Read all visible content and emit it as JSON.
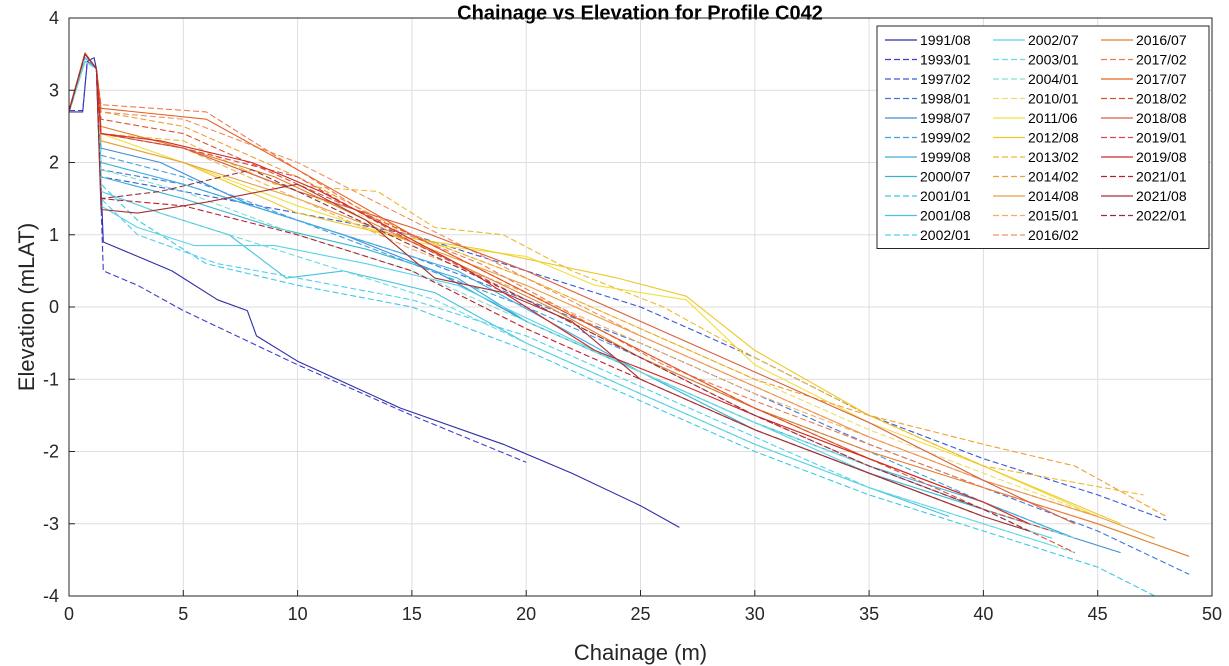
{
  "chart_data": {
    "type": "line",
    "title": "Chainage vs Elevation for Profile C042",
    "xlabel": "Chainage (m)",
    "ylabel": "Elevation (mLAT)",
    "xlim": [
      0,
      50
    ],
    "ylim": [
      -4,
      4
    ],
    "xticks": [
      0,
      5,
      10,
      15,
      20,
      25,
      30,
      35,
      40,
      45,
      50
    ],
    "yticks": [
      -4,
      -3,
      -2,
      -1,
      0,
      1,
      2,
      3,
      4
    ],
    "grid": true,
    "legend_position": "top-right",
    "legend_columns": 3,
    "series": [
      {
        "name": "1991/08",
        "color": "#2e2ea8",
        "dash": "solid",
        "x": [
          0,
          0.6,
          0.8,
          1.1,
          1.2,
          1.5,
          3,
          4.5,
          6.5,
          7.8,
          8.2,
          10,
          14.5,
          19,
          22,
          25,
          26.7
        ],
        "y": [
          2.7,
          2.7,
          3.4,
          3.45,
          3.3,
          0.9,
          0.7,
          0.5,
          0.1,
          -0.05,
          -0.4,
          -0.75,
          -1.4,
          -1.9,
          -2.3,
          -2.75,
          -3.05
        ]
      },
      {
        "name": "1993/01",
        "color": "#3c3cd0",
        "dash": "dash",
        "x": [
          0,
          0.6,
          0.8,
          1.2,
          1.5,
          3,
          5,
          10,
          15,
          20
        ],
        "y": [
          2.72,
          2.72,
          3.4,
          3.3,
          0.5,
          0.3,
          -0.05,
          -0.8,
          -1.5,
          -2.15
        ]
      },
      {
        "name": "1997/02",
        "color": "#3a5ad8",
        "dash": "dash",
        "x": [
          0,
          0.7,
          1.2,
          1.4,
          5,
          10,
          15,
          20,
          25,
          30,
          35,
          40,
          45,
          48
        ],
        "y": [
          2.7,
          3.4,
          3.3,
          1.8,
          1.6,
          1.3,
          1.0,
          0.5,
          0,
          -0.7,
          -1.5,
          -2.1,
          -2.6,
          -2.95
        ]
      },
      {
        "name": "1998/01",
        "color": "#3e78d8",
        "dash": "dash",
        "x": [
          0,
          0.7,
          1.2,
          1.4,
          5,
          10,
          15,
          20,
          25,
          30,
          35,
          40,
          45,
          49
        ],
        "y": [
          2.7,
          3.45,
          3.3,
          1.9,
          1.7,
          1.2,
          0.7,
          0.1,
          -0.5,
          -1.2,
          -1.9,
          -2.5,
          -3.1,
          -3.7
        ]
      },
      {
        "name": "1998/07",
        "color": "#3c8ed8",
        "dash": "solid",
        "x": [
          0,
          0.7,
          1.2,
          1.4,
          4,
          8,
          12,
          16,
          20,
          25,
          30,
          35,
          40,
          46
        ],
        "y": [
          2.7,
          3.4,
          3.3,
          2.2,
          2.0,
          1.4,
          1.0,
          0.5,
          -0.2,
          -0.9,
          -1.6,
          -2.2,
          -2.8,
          -3.4
        ]
      },
      {
        "name": "1999/02",
        "color": "#40a0e0",
        "dash": "dash",
        "x": [
          0,
          0.7,
          1.2,
          1.4,
          5,
          10,
          15,
          20,
          25,
          30,
          35,
          40,
          44
        ],
        "y": [
          2.7,
          3.4,
          3.3,
          2.1,
          1.8,
          1.2,
          0.6,
          0,
          -0.7,
          -1.4,
          -2.0,
          -2.7,
          -3.2
        ]
      },
      {
        "name": "1999/08",
        "color": "#40aee0",
        "dash": "solid",
        "x": [
          0,
          0.7,
          1.2,
          1.4,
          5,
          9,
          13,
          17,
          21,
          25,
          30,
          35,
          40,
          44
        ],
        "y": [
          2.7,
          3.4,
          3.3,
          2.0,
          1.7,
          1.3,
          0.9,
          0.5,
          -0.2,
          -0.9,
          -1.6,
          -2.2,
          -2.7,
          -3.2
        ]
      },
      {
        "name": "2000/07",
        "color": "#38b4d0",
        "dash": "solid",
        "x": [
          0,
          0.7,
          1.2,
          1.4,
          5,
          9,
          13,
          17,
          20,
          25,
          30,
          35,
          40,
          43
        ],
        "y": [
          2.7,
          3.4,
          3.3,
          1.8,
          1.5,
          1.1,
          0.8,
          0.4,
          -0.2,
          -0.9,
          -1.7,
          -2.3,
          -2.8,
          -3.1
        ]
      },
      {
        "name": "2001/01",
        "color": "#40c8e8",
        "dash": "dash",
        "x": [
          0,
          0.7,
          1.2,
          1.4,
          3,
          6,
          10,
          15,
          20,
          25,
          30,
          35,
          40,
          45,
          47.5
        ],
        "y": [
          2.7,
          3.45,
          3.3,
          1.7,
          1.2,
          0.6,
          0.3,
          0,
          -0.6,
          -1.3,
          -2.0,
          -2.6,
          -3.1,
          -3.6,
          -4.0
        ]
      },
      {
        "name": "2001/08",
        "color": "#48c0e0",
        "dash": "solid",
        "x": [
          0,
          0.7,
          1.2,
          1.4,
          4,
          7,
          9.5,
          12,
          16,
          20,
          25,
          30,
          35,
          38.5
        ],
        "y": [
          2.7,
          3.4,
          3.3,
          1.6,
          1.3,
          1.0,
          0.4,
          0.5,
          0.2,
          -0.5,
          -1.2,
          -1.9,
          -2.5,
          -2.9
        ]
      },
      {
        "name": "2002/01",
        "color": "#50d0ec",
        "dash": "dash",
        "x": [
          0,
          0.7,
          1.2,
          1.4,
          3,
          6.5,
          10,
          15,
          20,
          25,
          30,
          35,
          40,
          43
        ],
        "y": [
          2.7,
          3.4,
          3.3,
          1.5,
          1.0,
          0.6,
          0.4,
          0.1,
          -0.4,
          -1.1,
          -1.8,
          -2.5,
          -3.0,
          -3.3
        ]
      },
      {
        "name": "2002/07",
        "color": "#58d4e8",
        "dash": "solid",
        "x": [
          0,
          0.7,
          1.2,
          1.4,
          3,
          5.5,
          9,
          13,
          17,
          21,
          25,
          30,
          35,
          40,
          43
        ],
        "y": [
          2.7,
          3.4,
          3.3,
          1.4,
          1.1,
          0.85,
          0.85,
          0.6,
          0.3,
          -0.3,
          -0.9,
          -1.6,
          -2.3,
          -2.9,
          -3.2
        ]
      },
      {
        "name": "2003/01",
        "color": "#68dce0",
        "dash": "dash",
        "x": [
          0,
          0.7,
          1.2,
          1.4,
          4,
          8,
          12,
          16,
          20,
          25,
          30,
          35,
          40,
          44
        ],
        "y": [
          2.7,
          3.4,
          3.3,
          1.6,
          1.3,
          0.9,
          0.5,
          0.1,
          -0.5,
          -1.2,
          -1.9,
          -2.5,
          -3.0,
          -3.4
        ]
      },
      {
        "name": "2004/01",
        "color": "#80e0d0",
        "dash": "dash",
        "x": [
          0,
          0.7,
          1.2,
          1.4,
          5,
          10,
          15,
          20,
          25,
          30,
          35,
          40,
          44
        ],
        "y": [
          2.7,
          3.4,
          3.3,
          1.9,
          1.6,
          1.0,
          0.5,
          -0.2,
          -0.9,
          -1.6,
          -2.2,
          -2.8,
          -3.2
        ]
      },
      {
        "name": "2010/01",
        "color": "#e8e070",
        "dash": "dash",
        "x": [
          0,
          0.7,
          1.2,
          1.4,
          5,
          10,
          15,
          20,
          25,
          30,
          35,
          40,
          45
        ],
        "y": [
          2.7,
          3.5,
          3.3,
          2.4,
          2.2,
          1.6,
          1.0,
          0.4,
          -0.3,
          -1.0,
          -1.7,
          -2.3,
          -2.9
        ]
      },
      {
        "name": "2011/06",
        "color": "#f0e040",
        "dash": "solid",
        "x": [
          0,
          0.7,
          1.2,
          1.4,
          5,
          10,
          15,
          20,
          23,
          27,
          30,
          35,
          40,
          45
        ],
        "y": [
          2.7,
          3.5,
          3.3,
          2.4,
          2.0,
          1.4,
          0.9,
          0.7,
          0.3,
          0.1,
          -0.8,
          -1.6,
          -2.2,
          -2.9
        ]
      },
      {
        "name": "2012/08",
        "color": "#f0c828",
        "dash": "solid",
        "x": [
          0,
          0.7,
          1.2,
          1.4,
          5,
          10,
          14,
          18,
          21,
          24,
          27,
          30,
          35,
          40,
          46
        ],
        "y": [
          2.7,
          3.5,
          3.3,
          2.3,
          2.0,
          1.3,
          1.0,
          0.8,
          0.6,
          0.4,
          0.15,
          -0.6,
          -1.5,
          -2.2,
          -3.0
        ]
      },
      {
        "name": "2013/02",
        "color": "#f0b830",
        "dash": "dash",
        "x": [
          0,
          0.7,
          1.2,
          1.4,
          5,
          9,
          13.5,
          16,
          19,
          22,
          26,
          30,
          35,
          40,
          47
        ],
        "y": [
          2.7,
          3.5,
          3.3,
          2.4,
          2.3,
          1.7,
          1.6,
          1.1,
          1.0,
          0.5,
          0.0,
          -0.7,
          -1.5,
          -2.2,
          -2.6
        ]
      },
      {
        "name": "2014/02",
        "color": "#f0a030",
        "dash": "dash",
        "x": [
          0,
          0.7,
          1.2,
          1.4,
          5,
          10,
          15,
          20,
          25,
          30,
          35,
          40,
          44,
          48
        ],
        "y": [
          2.7,
          3.5,
          3.3,
          2.7,
          2.5,
          1.8,
          1.0,
          0.4,
          -0.3,
          -1.0,
          -1.5,
          -1.9,
          -2.2,
          -2.9
        ]
      },
      {
        "name": "2014/08",
        "color": "#e8a040",
        "dash": "solid",
        "x": [
          0,
          0.7,
          1.2,
          1.4,
          5,
          10,
          15,
          20,
          25,
          30,
          35,
          40,
          45,
          47.5
        ],
        "y": [
          2.7,
          3.5,
          3.3,
          2.3,
          2.0,
          1.5,
          0.9,
          0.3,
          -0.4,
          -1.1,
          -1.8,
          -2.4,
          -2.9,
          -3.2
        ]
      },
      {
        "name": "2015/01",
        "color": "#f0b060",
        "dash": "dash",
        "x": [
          0,
          0.7,
          1.2,
          1.4,
          5,
          10,
          15,
          20,
          25,
          30,
          35,
          40,
          45
        ],
        "y": [
          2.7,
          3.5,
          3.3,
          2.4,
          2.2,
          1.5,
          0.8,
          0.2,
          -0.5,
          -1.2,
          -1.8,
          -2.4,
          -2.9
        ]
      },
      {
        "name": "2016/02",
        "color": "#f09060",
        "dash": "dash",
        "x": [
          0,
          0.7,
          1.2,
          1.4,
          5,
          10,
          15,
          20,
          25,
          30,
          35,
          40,
          45
        ],
        "y": [
          2.7,
          3.5,
          3.3,
          2.7,
          2.6,
          2.0,
          1.2,
          0.4,
          -0.4,
          -1.1,
          -1.8,
          -2.4,
          -2.9
        ]
      },
      {
        "name": "2016/07",
        "color": "#e0802a",
        "dash": "solid",
        "x": [
          0,
          0.7,
          1.2,
          1.4,
          5,
          9,
          13,
          17,
          21,
          25,
          30,
          35,
          40,
          45,
          49
        ],
        "y": [
          2.72,
          3.52,
          3.3,
          2.5,
          2.2,
          1.8,
          1.2,
          0.6,
          0.0,
          -0.7,
          -1.4,
          -2.0,
          -2.5,
          -3.0,
          -3.45
        ]
      },
      {
        "name": "2017/02",
        "color": "#f07850",
        "dash": "dash",
        "x": [
          0,
          0.7,
          1.2,
          1.4,
          6,
          10,
          14,
          18,
          22,
          26,
          30,
          35,
          40,
          45
        ],
        "y": [
          2.7,
          3.5,
          3.3,
          2.8,
          2.7,
          1.9,
          1.1,
          0.6,
          -0.1,
          -0.8,
          -1.3,
          -1.9,
          -2.5,
          -3.0
        ]
      },
      {
        "name": "2017/07",
        "color": "#e86020",
        "dash": "solid",
        "x": [
          0,
          0.7,
          1.2,
          1.4,
          6,
          10,
          15,
          20,
          25,
          30,
          35,
          40,
          42
        ],
        "y": [
          2.72,
          3.5,
          3.3,
          2.75,
          2.6,
          1.9,
          1.0,
          0.2,
          -0.6,
          -1.4,
          -2.1,
          -2.7,
          -3.0
        ]
      },
      {
        "name": "2018/02",
        "color": "#e05030",
        "dash": "dash",
        "x": [
          0,
          0.7,
          1.2,
          1.4,
          5,
          10,
          15,
          20,
          25,
          30,
          35,
          40,
          44
        ],
        "y": [
          2.7,
          3.5,
          3.3,
          2.6,
          2.4,
          1.7,
          1.0,
          0.2,
          -0.6,
          -1.4,
          -2.1,
          -2.8,
          -3.4
        ]
      },
      {
        "name": "2018/08",
        "color": "#d86040",
        "dash": "solid",
        "x": [
          0,
          0.7,
          1.2,
          1.4,
          5,
          10,
          15,
          20,
          25,
          30,
          35,
          40,
          44
        ],
        "y": [
          2.7,
          3.5,
          3.3,
          2.4,
          2.2,
          1.6,
          1.1,
          0.5,
          -0.2,
          -0.9,
          -1.6,
          -2.4,
          -3.0
        ]
      },
      {
        "name": "2019/01",
        "color": "#d84848",
        "dash": "dash",
        "x": [
          0,
          0.7,
          1.2,
          1.4,
          5,
          10,
          15,
          20,
          25,
          30,
          35,
          40,
          43
        ],
        "y": [
          2.7,
          3.5,
          3.3,
          2.4,
          2.2,
          1.8,
          0.9,
          0.1,
          -0.7,
          -1.5,
          -2.2,
          -2.8,
          -3.1
        ]
      },
      {
        "name": "2019/08",
        "color": "#d02828",
        "dash": "solid",
        "x": [
          0,
          0.7,
          1.2,
          1.4,
          4,
          8,
          11,
          14,
          17,
          20,
          23,
          27,
          30,
          35,
          40,
          42
        ],
        "y": [
          2.72,
          3.5,
          3.3,
          2.4,
          2.3,
          2.0,
          1.6,
          1.1,
          0.6,
          0.0,
          -0.6,
          -1.1,
          -1.5,
          -2.1,
          -2.7,
          -3.0
        ]
      },
      {
        "name": "2021/01",
        "color": "#b82030",
        "dash": "dash",
        "x": [
          0,
          0.7,
          1.2,
          1.4,
          5,
          10,
          15,
          20,
          25,
          30,
          35,
          40
        ],
        "y": [
          2.7,
          3.5,
          3.3,
          1.5,
          1.4,
          1.0,
          0.5,
          -0.3,
          -1.0,
          -1.7,
          -2.3,
          -2.9
        ]
      },
      {
        "name": "2021/08",
        "color": "#a83030",
        "dash": "solid",
        "x": [
          0,
          0.7,
          1.2,
          1.4,
          3,
          6,
          10,
          13,
          16,
          19,
          22,
          25,
          30,
          35,
          40,
          42
        ],
        "y": [
          2.72,
          3.5,
          3.3,
          1.35,
          1.3,
          1.45,
          1.7,
          1.2,
          0.4,
          0.2,
          -0.2,
          -1.0,
          -1.7,
          -2.3,
          -2.9,
          -3.1
        ]
      },
      {
        "name": "2022/01",
        "color": "#903040",
        "dash": "dash",
        "x": [
          0,
          0.7,
          1.2,
          1.4,
          4,
          8,
          12,
          16,
          20,
          25,
          30,
          35,
          40,
          42
        ],
        "y": [
          2.7,
          3.5,
          3.3,
          1.5,
          1.6,
          1.9,
          1.3,
          0.7,
          0.1,
          -0.7,
          -1.5,
          -2.2,
          -2.8,
          -3.1
        ]
      }
    ]
  }
}
